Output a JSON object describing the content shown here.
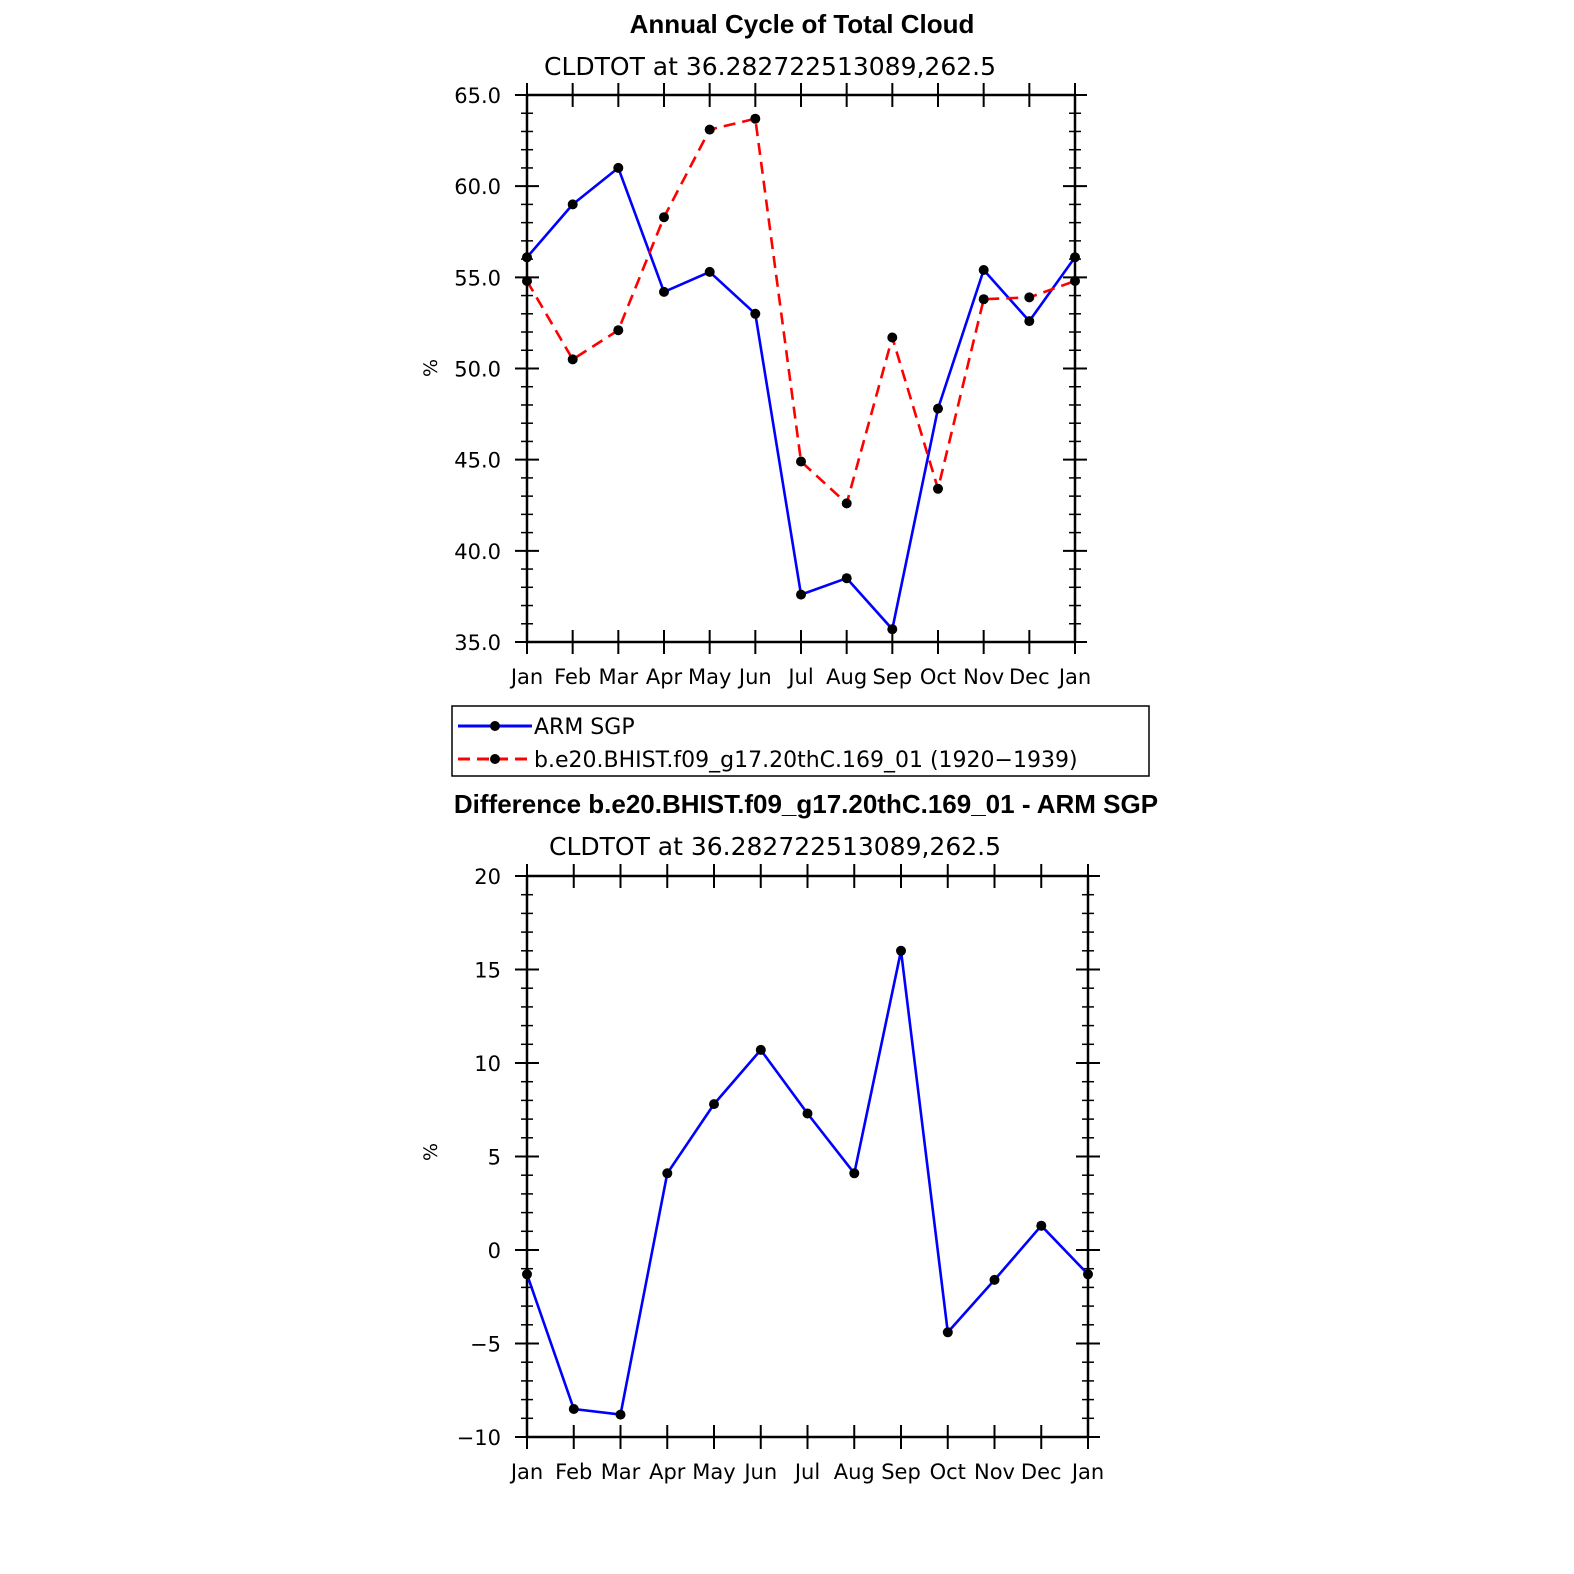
{
  "chart_data": [
    {
      "type": "line",
      "title": "Annual Cycle of Total Cloud",
      "subtitle": "CLDTOT at 36.282722513089,262.5",
      "ylabel": "%",
      "categories": [
        "Jan",
        "Feb",
        "Mar",
        "Apr",
        "May",
        "Jun",
        "Jul",
        "Aug",
        "Sep",
        "Oct",
        "Nov",
        "Dec",
        "Jan"
      ],
      "ylim": [
        35.0,
        65.0
      ],
      "yticks": [
        "35.0",
        "40.0",
        "45.0",
        "50.0",
        "55.0",
        "60.0",
        "65.0"
      ],
      "series": [
        {
          "name": "ARM SGP",
          "color": "#0000ff",
          "dash": "solid",
          "values": [
            56.1,
            59.0,
            61.0,
            54.2,
            55.3,
            53.0,
            37.6,
            38.5,
            35.7,
            47.8,
            55.4,
            52.6,
            56.1
          ]
        },
        {
          "name": "b.e20.BHIST.f09_g17.20thC.169_01 (1920−1939)",
          "color": "#ff0000",
          "dash": "dashed",
          "values": [
            54.8,
            50.5,
            52.1,
            58.3,
            63.1,
            63.7,
            44.9,
            42.6,
            51.7,
            43.4,
            53.8,
            53.9,
            54.8
          ]
        }
      ],
      "legend_position": "below"
    },
    {
      "type": "line",
      "title": "Difference b.e20.BHIST.f09_g17.20thC.169_01 - ARM SGP",
      "subtitle": "CLDTOT at 36.282722513089,262.5",
      "ylabel": "%",
      "categories": [
        "Jan",
        "Feb",
        "Mar",
        "Apr",
        "May",
        "Jun",
        "Jul",
        "Aug",
        "Sep",
        "Oct",
        "Nov",
        "Dec",
        "Jan"
      ],
      "ylim": [
        -10,
        20
      ],
      "yticks": [
        "−10",
        "−5",
        "0",
        "5",
        "10",
        "15",
        "20"
      ],
      "series": [
        {
          "color": "#0000ff",
          "dash": "solid",
          "values": [
            -1.3,
            -8.5,
            -8.8,
            4.1,
            7.8,
            10.7,
            7.3,
            4.1,
            16.0,
            -4.4,
            -1.6,
            1.3,
            -1.3
          ]
        }
      ]
    }
  ]
}
